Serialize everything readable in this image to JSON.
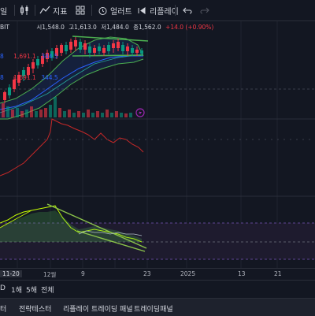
{
  "toolbar": {
    "interval": "일",
    "indicators_label": "지표",
    "alert_label": "얼러트",
    "replay_label": "리플레이"
  },
  "legend": {
    "symbol_fragment": "BIT",
    "open": "시1,548.0",
    "high": "고1,613.0",
    "low": "저1,484.0",
    "close": "종1,562.0",
    "change": "+14.0 (+0.90%)"
  },
  "indicator_rows": [
    {
      "prefix": "8",
      "value": "1,691.1",
      "extra": "344.5"
    },
    {
      "prefix": "8",
      "value": "1,691.1",
      "extra": "344.5"
    }
  ],
  "xaxis": {
    "labels": [
      {
        "text": "11-20",
        "highlight": true
      },
      {
        "text": "12월",
        "highlight": false
      },
      {
        "text": "9",
        "highlight": false
      },
      {
        "text": "23",
        "highlight": false
      },
      {
        "text": "2025",
        "highlight": false
      },
      {
        "text": "13",
        "highlight": false
      },
      {
        "text": "21",
        "highlight": false
      }
    ]
  },
  "timeframes": [
    "D",
    "1해",
    "5해",
    "전체"
  ],
  "bottom_tabs": [
    "터",
    "전략테스터",
    "리플레이 트레이딩 패널",
    "트레이딩패널"
  ],
  "colors": {
    "up": "#089981",
    "down": "#f23645",
    "green_line": "#4caf50",
    "blue_line": "#2962ff",
    "bg": "#131722"
  }
}
